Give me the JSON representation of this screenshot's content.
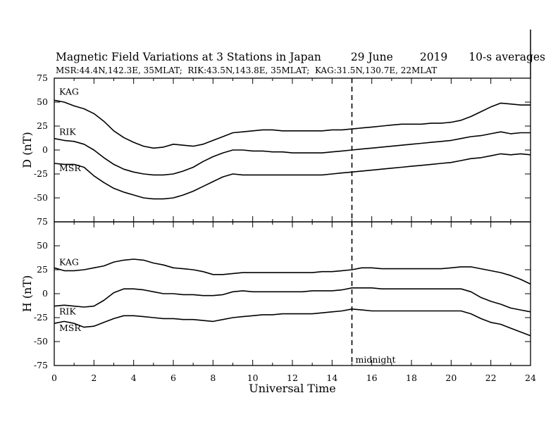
{
  "title": {
    "main": "Magnetic Field Variations at 3 Stations in Japan",
    "date": "29 June",
    "year": "2019",
    "averaging": "10-s averages",
    "stations": "MSR:44.4N,142.3E, 35MLAT;  RIK:43.5N,143.8E, 35MLAT;  KAG:31.5N,130.7E, 22MLAT"
  },
  "chart_data": [
    {
      "type": "line",
      "ylabel": "D (nT)",
      "xlabel": "",
      "xlim": [
        0,
        24
      ],
      "ylim": [
        -75,
        75
      ],
      "yticks": [
        -75,
        -50,
        -25,
        0,
        25,
        50,
        75
      ],
      "series": [
        {
          "name": "KAG",
          "x": [
            0,
            0.5,
            1,
            1.5,
            2,
            2.5,
            3,
            3.5,
            4,
            4.5,
            5,
            5.5,
            6,
            6.5,
            7,
            7.5,
            8,
            8.5,
            9,
            9.5,
            10,
            10.5,
            11,
            11.5,
            12,
            12.5,
            13,
            13.5,
            14,
            14.5,
            15,
            15.5,
            16,
            16.5,
            17,
            17.5,
            18,
            18.5,
            19,
            19.5,
            20,
            20.5,
            21,
            21.5,
            22,
            22.5,
            23,
            23.5,
            24
          ],
          "values": [
            52,
            50,
            46,
            43,
            38,
            30,
            20,
            13,
            8,
            4,
            2,
            3,
            6,
            5,
            4,
            6,
            10,
            14,
            18,
            19,
            20,
            21,
            21,
            20,
            20,
            20,
            20,
            20,
            21,
            21,
            22,
            23,
            24,
            25,
            26,
            27,
            27,
            27,
            28,
            28,
            29,
            31,
            35,
            40,
            45,
            49,
            48,
            47,
            47
          ]
        },
        {
          "name": "RIK",
          "x": [
            0,
            0.5,
            1,
            1.5,
            2,
            2.5,
            3,
            3.5,
            4,
            4.5,
            5,
            5.5,
            6,
            6.5,
            7,
            7.5,
            8,
            8.5,
            9,
            9.5,
            10,
            10.5,
            11,
            11.5,
            12,
            12.5,
            13,
            13.5,
            14,
            14.5,
            15,
            15.5,
            16,
            16.5,
            17,
            17.5,
            18,
            18.5,
            19,
            19.5,
            20,
            20.5,
            21,
            21.5,
            22,
            22.5,
            23,
            23.5,
            24
          ],
          "values": [
            12,
            10,
            9,
            6,
            0,
            -8,
            -15,
            -20,
            -23,
            -25,
            -26,
            -26,
            -25,
            -22,
            -18,
            -12,
            -7,
            -3,
            0,
            0,
            -1,
            -1,
            -2,
            -2,
            -3,
            -3,
            -3,
            -3,
            -2,
            -1,
            0,
            1,
            2,
            3,
            4,
            5,
            6,
            7,
            8,
            9,
            10,
            12,
            14,
            15,
            17,
            19,
            17,
            18,
            18
          ]
        },
        {
          "name": "MSR",
          "x": [
            0,
            0.5,
            1,
            1.5,
            2,
            2.5,
            3,
            3.5,
            4,
            4.5,
            5,
            5.5,
            6,
            6.5,
            7,
            7.5,
            8,
            8.5,
            9,
            9.5,
            10,
            10.5,
            11,
            11.5,
            12,
            12.5,
            13,
            13.5,
            14,
            14.5,
            15,
            15.5,
            16,
            16.5,
            17,
            17.5,
            18,
            18.5,
            19,
            19.5,
            20,
            20.5,
            21,
            21.5,
            22,
            22.5,
            23,
            23.5,
            24
          ],
          "values": [
            -14,
            -15,
            -15,
            -18,
            -27,
            -34,
            -40,
            -44,
            -47,
            -50,
            -51,
            -51,
            -50,
            -47,
            -43,
            -38,
            -33,
            -28,
            -25,
            -26,
            -26,
            -26,
            -26,
            -26,
            -26,
            -26,
            -26,
            -26,
            -25,
            -24,
            -23,
            -22,
            -21,
            -20,
            -19,
            -18,
            -17,
            -16,
            -15,
            -14,
            -13,
            -11,
            -9,
            -8,
            -6,
            -4,
            -5,
            -4,
            -5
          ]
        }
      ]
    },
    {
      "type": "line",
      "ylabel": "H (nT)",
      "xlabel": "Universal Time",
      "xlim": [
        0,
        24
      ],
      "ylim": [
        -75,
        75
      ],
      "xticks": [
        0,
        2,
        4,
        6,
        8,
        10,
        12,
        14,
        16,
        18,
        20,
        22,
        24
      ],
      "yticks": [
        -75,
        -50,
        -25,
        0,
        25,
        50,
        75
      ],
      "annotation": {
        "text": "midnight",
        "x": 15
      },
      "series": [
        {
          "name": "KAG",
          "x": [
            0,
            0.5,
            1,
            1.5,
            2,
            2.5,
            3,
            3.5,
            4,
            4.5,
            5,
            5.5,
            6,
            6.5,
            7,
            7.5,
            8,
            8.5,
            9,
            9.5,
            10,
            10.5,
            11,
            11.5,
            12,
            12.5,
            13,
            13.5,
            14,
            14.5,
            15,
            15.5,
            16,
            16.5,
            17,
            17.5,
            18,
            18.5,
            19,
            19.5,
            20,
            20.5,
            21,
            21.5,
            22,
            22.5,
            23,
            23.5,
            24
          ],
          "values": [
            27,
            24,
            24,
            25,
            27,
            29,
            33,
            35,
            36,
            35,
            32,
            30,
            27,
            26,
            25,
            23,
            20,
            20,
            21,
            22,
            22,
            22,
            22,
            22,
            22,
            22,
            22,
            23,
            23,
            24,
            25,
            27,
            27,
            26,
            26,
            26,
            26,
            26,
            26,
            26,
            27,
            28,
            28,
            26,
            24,
            22,
            19,
            15,
            10
          ]
        },
        {
          "name": "RIK",
          "x": [
            0,
            0.5,
            1,
            1.5,
            2,
            2.5,
            3,
            3.5,
            4,
            4.5,
            5,
            5.5,
            6,
            6.5,
            7,
            7.5,
            8,
            8.5,
            9,
            9.5,
            10,
            10.5,
            11,
            11.5,
            12,
            12.5,
            13,
            13.5,
            14,
            14.5,
            15,
            15.5,
            16,
            16.5,
            17,
            17.5,
            18,
            18.5,
            19,
            19.5,
            20,
            20.5,
            21,
            21.5,
            22,
            22.5,
            23,
            23.5,
            24
          ],
          "values": [
            -13,
            -12,
            -13,
            -14,
            -13,
            -7,
            1,
            5,
            5,
            4,
            2,
            0,
            0,
            -1,
            -1,
            -2,
            -2,
            -1,
            2,
            3,
            2,
            2,
            2,
            2,
            2,
            2,
            3,
            3,
            3,
            4,
            6,
            6,
            6,
            5,
            5,
            5,
            5,
            5,
            5,
            5,
            5,
            5,
            2,
            -4,
            -8,
            -11,
            -15,
            -17,
            -19
          ]
        },
        {
          "name": "MSR",
          "x": [
            0,
            0.5,
            1,
            1.5,
            2,
            2.5,
            3,
            3.5,
            4,
            4.5,
            5,
            5.5,
            6,
            6.5,
            7,
            7.5,
            8,
            8.5,
            9,
            9.5,
            10,
            10.5,
            11,
            11.5,
            12,
            12.5,
            13,
            13.5,
            14,
            14.5,
            15,
            15.5,
            16,
            16.5,
            17,
            17.5,
            18,
            18.5,
            19,
            19.5,
            20,
            20.5,
            21,
            21.5,
            22,
            22.5,
            23,
            23.5,
            24
          ],
          "values": [
            -31,
            -29,
            -31,
            -35,
            -34,
            -30,
            -26,
            -23,
            -23,
            -24,
            -25,
            -26,
            -26,
            -27,
            -27,
            -28,
            -29,
            -27,
            -25,
            -24,
            -23,
            -22,
            -22,
            -21,
            -21,
            -21,
            -21,
            -20,
            -19,
            -18,
            -16,
            -17,
            -18,
            -18,
            -18,
            -18,
            -18,
            -18,
            -18,
            -18,
            -18,
            -18,
            -21,
            -26,
            -30,
            -32,
            -36,
            -40,
            -44
          ]
        }
      ]
    }
  ]
}
